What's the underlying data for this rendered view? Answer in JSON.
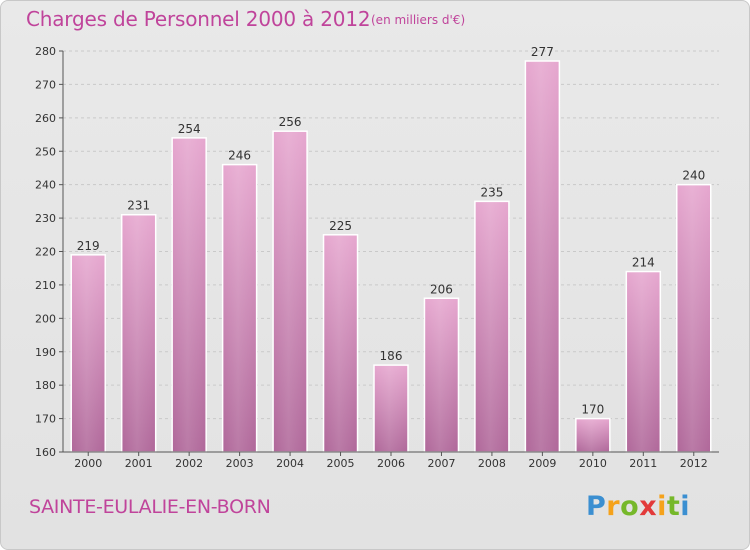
{
  "header": {
    "title": "Charges de Personnel 2000 à 2012",
    "subtitle": "(en milliers d'€)"
  },
  "footer": {
    "commune": "SAINTE-EULALIE-EN-BORN",
    "logo_text": "Proxiti"
  },
  "colors": {
    "accent": "#c0449b",
    "bar_top": "#e6a7cf",
    "bar_bottom": "#b0689a"
  },
  "chart_data": {
    "type": "bar",
    "title": "Charges de Personnel 2000 à 2012",
    "subtitle": "(en milliers d'€)",
    "categories": [
      "2000",
      "2001",
      "2002",
      "2003",
      "2004",
      "2005",
      "2006",
      "2007",
      "2008",
      "2009",
      "2010",
      "2011",
      "2012"
    ],
    "values": [
      219,
      231,
      254,
      246,
      256,
      225,
      186,
      206,
      235,
      277,
      170,
      214,
      240
    ],
    "ylim": [
      160,
      280
    ],
    "yticks": [
      160,
      170,
      180,
      190,
      200,
      210,
      220,
      230,
      240,
      250,
      260,
      270,
      280
    ],
    "grid": true,
    "legend": "none"
  }
}
